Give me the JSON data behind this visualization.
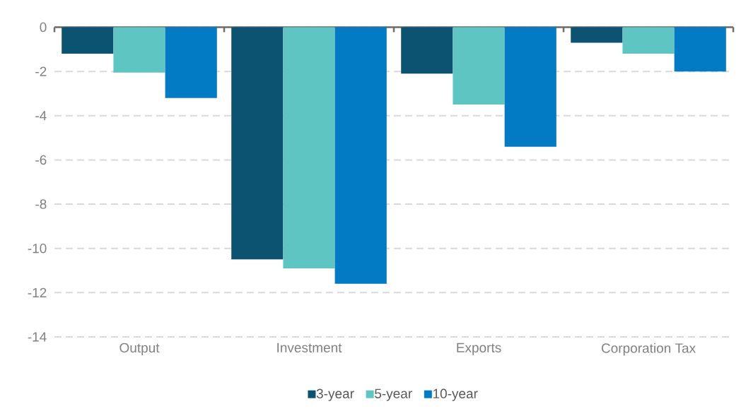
{
  "chart_data": {
    "type": "bar",
    "categories": [
      "Output",
      "Investment",
      "Exports",
      "Corporation Tax"
    ],
    "series": [
      {
        "name": "3-year",
        "color": "#0b5370",
        "values": [
          -1.2,
          -10.5,
          -2.1,
          -0.7
        ]
      },
      {
        "name": "5-year",
        "color": "#5fc5c2",
        "values": [
          -2.05,
          -10.9,
          -3.5,
          -1.2
        ]
      },
      {
        "name": "10-year",
        "color": "#037bc4",
        "values": [
          -3.2,
          -11.6,
          -5.4,
          -2.0
        ]
      }
    ],
    "ylim": [
      -14,
      0
    ],
    "yticks": [
      -14,
      -12,
      -10,
      -8,
      -6,
      -4,
      -2,
      0
    ],
    "grid": "y",
    "legend": "bottom"
  }
}
